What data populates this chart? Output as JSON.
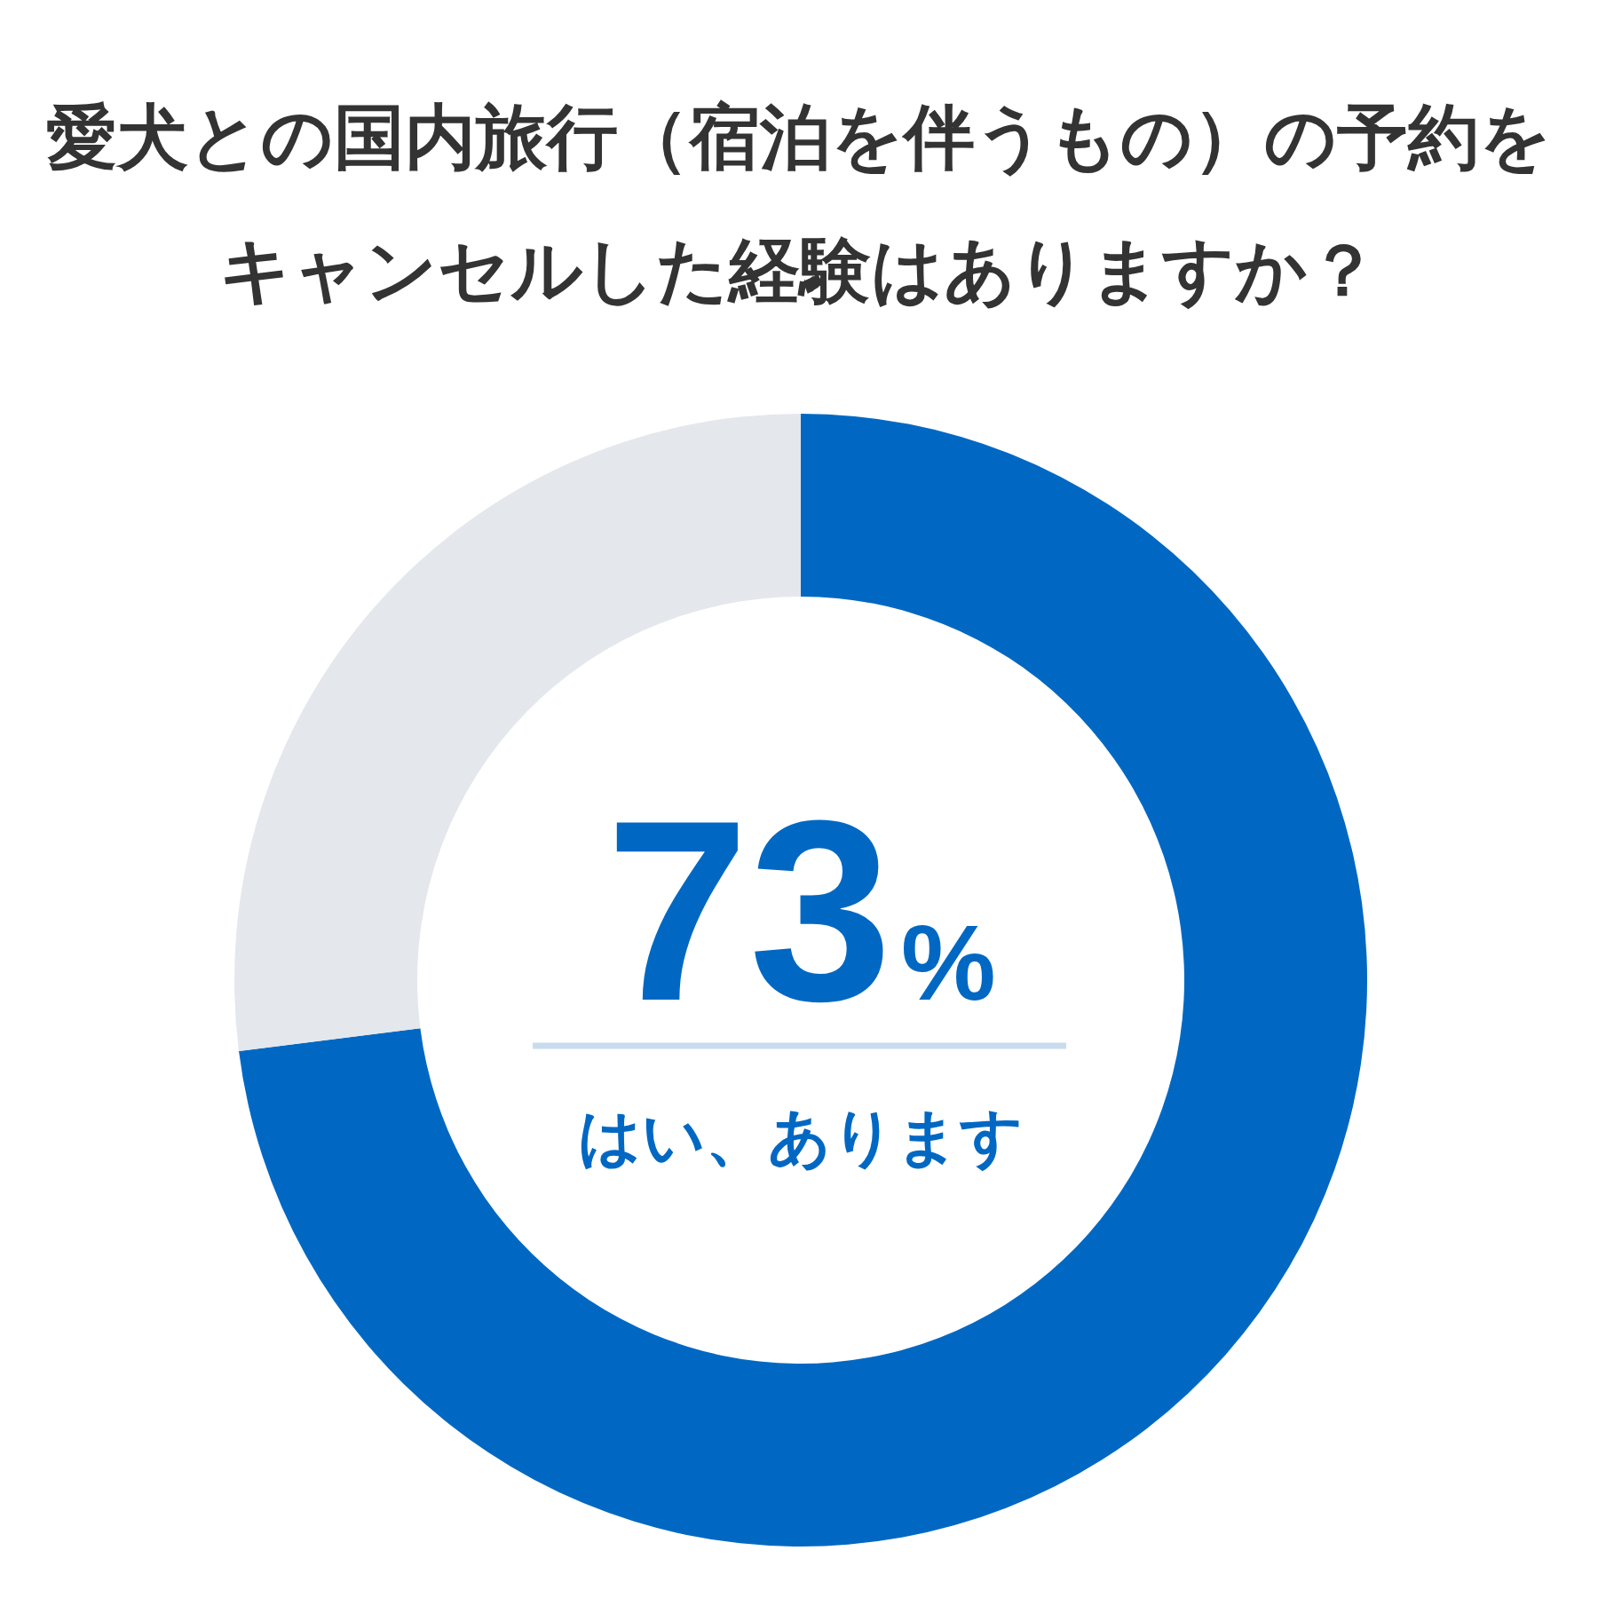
{
  "chart_data": {
    "type": "donut",
    "title": "愛犬との国内旅行（宿泊を伴うもの）の予約をキャンセルした経験はありますか？",
    "categories": [
      "はい、あります",
      null
    ],
    "values": [
      73,
      27
    ],
    "colors": [
      "#0068c3",
      "#e4e7ec"
    ],
    "value_labels": [
      "73%",
      null
    ]
  }
}
